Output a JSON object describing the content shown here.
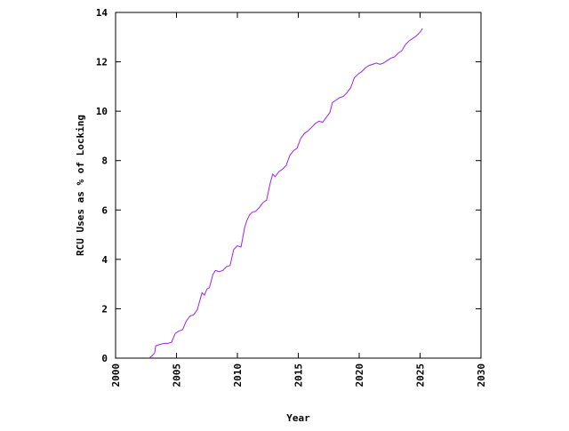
{
  "chart_data": {
    "type": "line",
    "xlabel": "Year",
    "ylabel": "RCU Uses as % of Locking",
    "xlim": [
      2000,
      2030
    ],
    "ylim": [
      0,
      14
    ],
    "x_ticks": [
      2000,
      2005,
      2010,
      2015,
      2020,
      2025,
      2030
    ],
    "y_ticks": [
      0,
      2,
      4,
      6,
      8,
      10,
      12,
      14
    ],
    "grid": false,
    "line_color": "#a020f0",
    "series": [
      {
        "x": [
          2002.75,
          2003.0,
          2003.2,
          2003.3,
          2003.6,
          2004.0,
          2004.3,
          2004.6,
          2004.9,
          2005.2,
          2005.5,
          2005.8,
          2006.1,
          2006.4,
          2006.7,
          2006.9,
          2007.1,
          2007.3,
          2007.5,
          2007.7,
          2008.0,
          2008.2,
          2008.5,
          2008.8,
          2009.1,
          2009.4,
          2009.7,
          2010.0,
          2010.3,
          2010.6,
          2010.8,
          2011.0,
          2011.2,
          2011.5,
          2011.8,
          2012.1,
          2012.4,
          2012.7,
          2012.9,
          2013.1,
          2013.4,
          2013.7,
          2014.0,
          2014.3,
          2014.6,
          2014.9,
          2015.2,
          2015.5,
          2015.8,
          2016.1,
          2016.4,
          2016.7,
          2017.0,
          2017.3,
          2017.6,
          2017.8,
          2018.1,
          2018.4,
          2018.7,
          2019.0,
          2019.3,
          2019.6,
          2019.9,
          2020.2,
          2020.5,
          2020.8,
          2021.1,
          2021.4,
          2021.7,
          2022.0,
          2022.3,
          2022.6,
          2022.9,
          2023.2,
          2023.5,
          2023.8,
          2024.1,
          2024.4,
          2024.7,
          2025.0,
          2025.2
        ],
        "y": [
          0.0,
          0.1,
          0.2,
          0.5,
          0.55,
          0.6,
          0.6,
          0.65,
          1.0,
          1.1,
          1.15,
          1.5,
          1.7,
          1.75,
          1.95,
          2.3,
          2.65,
          2.55,
          2.8,
          2.85,
          3.4,
          3.55,
          3.5,
          3.55,
          3.7,
          3.75,
          4.4,
          4.55,
          4.5,
          5.3,
          5.6,
          5.8,
          5.9,
          5.95,
          6.1,
          6.3,
          6.4,
          7.1,
          7.45,
          7.35,
          7.55,
          7.65,
          7.8,
          8.2,
          8.4,
          8.5,
          8.9,
          9.1,
          9.2,
          9.35,
          9.5,
          9.6,
          9.55,
          9.75,
          9.95,
          10.35,
          10.45,
          10.55,
          10.6,
          10.75,
          10.95,
          11.35,
          11.5,
          11.6,
          11.75,
          11.85,
          11.9,
          11.95,
          11.9,
          11.95,
          12.05,
          12.15,
          12.2,
          12.35,
          12.45,
          12.7,
          12.85,
          12.95,
          13.05,
          13.2,
          13.35
        ]
      }
    ]
  }
}
